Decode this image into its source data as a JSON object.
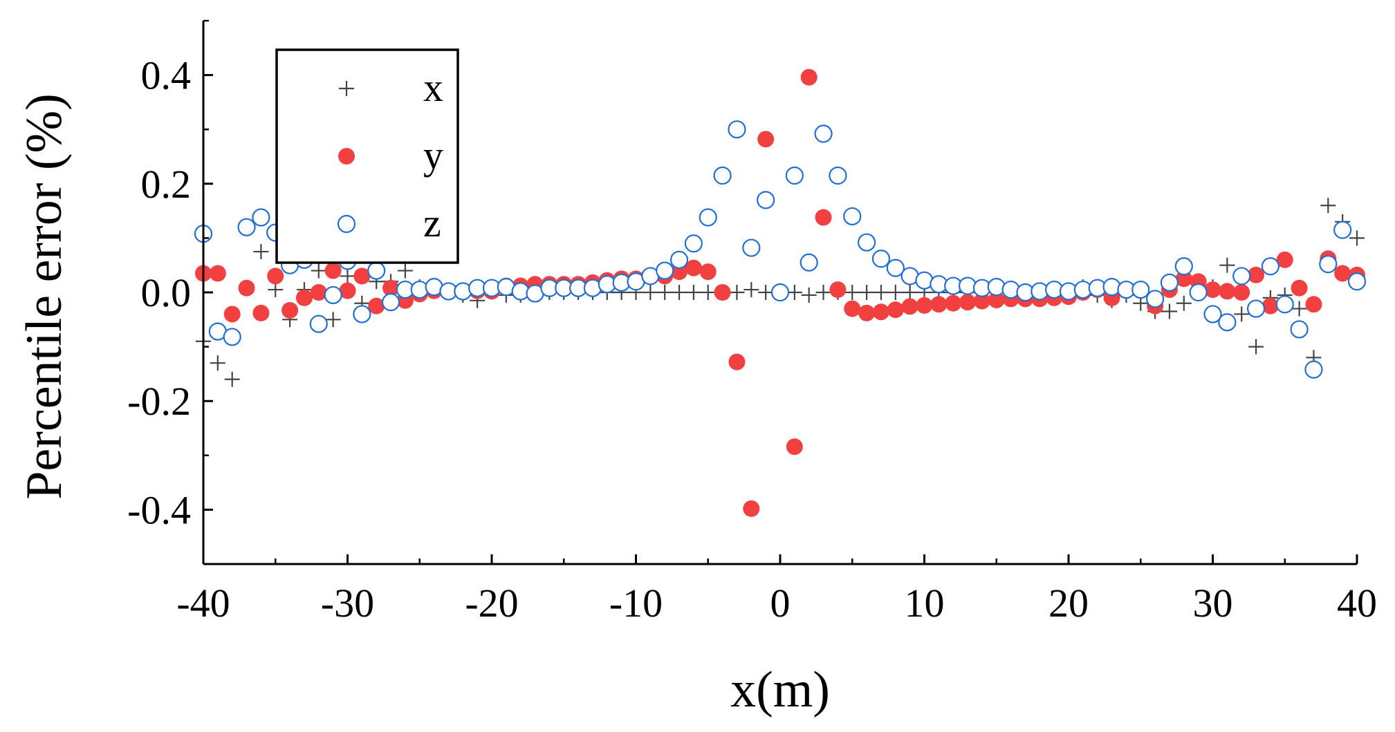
{
  "chart_data": {
    "type": "scatter",
    "title": "",
    "xlabel": "x(m)",
    "ylabel": "Percentile error (%)",
    "xlim": [
      -40,
      40
    ],
    "ylim": [
      -0.5,
      0.5
    ],
    "xticks": [
      -40,
      -30,
      -20,
      -10,
      0,
      10,
      20,
      30,
      40
    ],
    "xtick_labels": [
      "-40",
      "-30",
      "-20",
      "-10",
      "0",
      "10",
      "20",
      "30",
      "40"
    ],
    "yticks": [
      -0.4,
      -0.2,
      0.0,
      0.2,
      0.4
    ],
    "ytick_labels": [
      "-0.4",
      "-0.2",
      "0.0",
      "0.2",
      "0.4"
    ],
    "grid": false,
    "legend_position": "top-left",
    "x": [
      -40,
      -39,
      -38,
      -37,
      -36,
      -35,
      -34,
      -33,
      -32,
      -31,
      -30,
      -29,
      -28,
      -27,
      -26,
      -25,
      -24,
      -23,
      -22,
      -21,
      -20,
      -19,
      -18,
      -17,
      -16,
      -15,
      -14,
      -13,
      -12,
      -11,
      -10,
      -9,
      -8,
      -7,
      -6,
      -5,
      -4,
      -3,
      -2,
      -1,
      0,
      1,
      2,
      3,
      4,
      5,
      6,
      7,
      8,
      9,
      10,
      11,
      12,
      13,
      14,
      15,
      16,
      17,
      18,
      19,
      20,
      21,
      22,
      23,
      24,
      25,
      26,
      27,
      28,
      29,
      30,
      31,
      32,
      33,
      34,
      35,
      36,
      37,
      38,
      39,
      40
    ],
    "series": [
      {
        "name": "x",
        "marker": "plus",
        "color": "#444444",
        "values": [
          -0.09,
          -0.13,
          -0.16,
          0.12,
          0.075,
          0.005,
          -0.05,
          0.005,
          0.04,
          -0.05,
          0.03,
          -0.02,
          0.02,
          0.02,
          0.04,
          0.01,
          0.01,
          0.0,
          -0.005,
          -0.015,
          0.005,
          -0.005,
          -0.005,
          0.0,
          0.0,
          0.0,
          0.0,
          0.0,
          0.0,
          0.0,
          0.0,
          0.0,
          0.0,
          0.0,
          0.0,
          0.0,
          0.0,
          0.0,
          0.005,
          0.0,
          0.0,
          0.0,
          -0.005,
          0.0,
          0.0,
          0.0,
          0.0,
          0.0,
          0.0,
          0.0,
          0.0,
          0.0,
          0.0,
          0.0,
          0.0,
          0.0,
          0.0,
          0.0,
          0.0,
          0.0,
          0.0,
          0.01,
          -0.005,
          -0.015,
          -0.005,
          -0.02,
          -0.035,
          -0.035,
          -0.02,
          0.02,
          0.01,
          0.05,
          -0.04,
          -0.1,
          -0.01,
          -0.005,
          -0.03,
          -0.12,
          0.16,
          0.13,
          0.1
        ]
      },
      {
        "name": "y",
        "marker": "filled-circle",
        "color": "#f24040",
        "values": [
          0.035,
          0.035,
          -0.04,
          0.008,
          -0.038,
          0.03,
          -0.033,
          -0.01,
          0.0,
          0.04,
          0.003,
          0.03,
          -0.025,
          0.008,
          -0.015,
          -0.003,
          0.003,
          0.003,
          0.003,
          0.003,
          0.002,
          0.012,
          0.012,
          0.015,
          0.015,
          0.015,
          0.015,
          0.018,
          0.022,
          0.025,
          0.025,
          0.03,
          0.03,
          0.038,
          0.045,
          0.038,
          0.0,
          -0.128,
          -0.398,
          0.282,
          0.0,
          -0.284,
          0.396,
          0.138,
          0.005,
          -0.03,
          -0.038,
          -0.036,
          -0.032,
          -0.026,
          -0.024,
          -0.022,
          -0.02,
          -0.018,
          -0.016,
          -0.014,
          -0.012,
          -0.012,
          -0.012,
          -0.01,
          -0.008,
          0.0,
          0.005,
          -0.01,
          0.005,
          0.005,
          -0.025,
          0.005,
          0.025,
          0.02,
          0.005,
          0.002,
          0.0,
          0.032,
          -0.025,
          0.06,
          0.008,
          -0.022,
          0.062,
          0.035,
          0.032
        ]
      },
      {
        "name": "z",
        "marker": "open-circle",
        "color": "#1f6fd6",
        "values": [
          0.108,
          -0.072,
          -0.082,
          0.12,
          0.138,
          0.11,
          0.05,
          0.06,
          -0.058,
          -0.005,
          0.058,
          -0.04,
          0.04,
          -0.018,
          0.005,
          0.005,
          0.01,
          0.002,
          0.002,
          0.008,
          0.008,
          0.01,
          0.002,
          -0.002,
          0.008,
          0.008,
          0.008,
          0.008,
          0.015,
          0.018,
          0.02,
          0.03,
          0.04,
          0.06,
          0.09,
          0.138,
          0.215,
          0.3,
          0.082,
          0.17,
          0.0,
          0.215,
          0.055,
          0.292,
          0.215,
          0.14,
          0.092,
          0.062,
          0.045,
          0.03,
          0.022,
          0.015,
          0.012,
          0.012,
          0.008,
          0.01,
          0.005,
          0.0,
          0.002,
          0.005,
          0.002,
          0.005,
          0.008,
          0.01,
          0.005,
          0.005,
          -0.012,
          0.018,
          0.048,
          0.0,
          -0.04,
          -0.055,
          0.03,
          -0.03,
          0.048,
          -0.022,
          -0.068,
          -0.142,
          0.052,
          0.115,
          0.02
        ]
      }
    ]
  }
}
